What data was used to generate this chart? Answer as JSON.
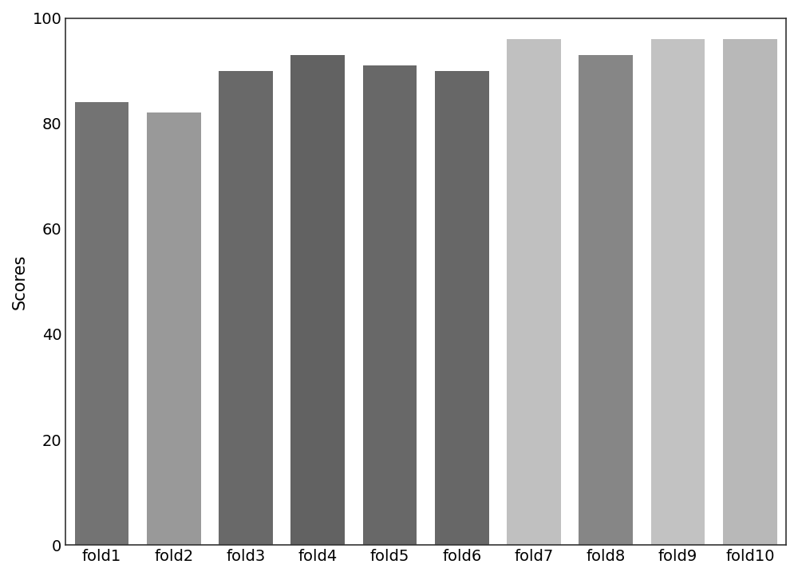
{
  "categories": [
    "fold1",
    "fold2",
    "fold3",
    "fold4",
    "fold5",
    "fold6",
    "fold7",
    "fold8",
    "fold9",
    "fold10"
  ],
  "values": [
    84,
    82,
    90,
    93,
    91,
    90,
    96,
    93,
    96,
    96
  ],
  "bar_colors": [
    "#737373",
    "#999999",
    "#696969",
    "#626262",
    "#686868",
    "#676767",
    "#c0c0c0",
    "#868686",
    "#c2c2c2",
    "#b8b8b8"
  ],
  "ylabel": "Scores",
  "ylim": [
    0,
    100
  ],
  "yticks": [
    0,
    20,
    40,
    60,
    80,
    100
  ],
  "background_color": "#ffffff",
  "bar_width": 0.75,
  "tick_fontsize": 14,
  "label_fontsize": 15,
  "spine_color": "#333333"
}
